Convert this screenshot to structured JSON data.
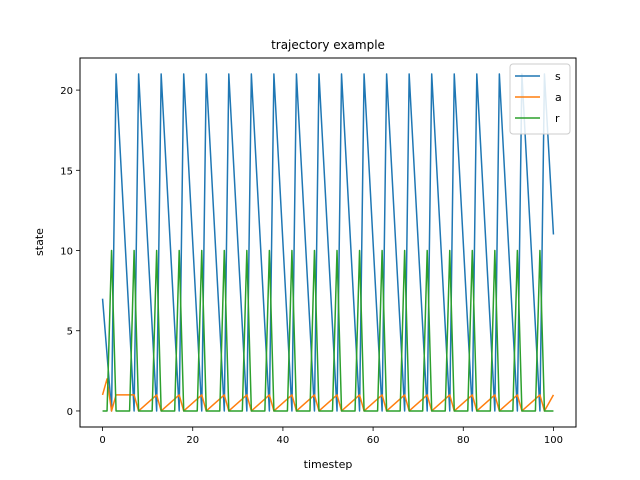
{
  "chart_data": {
    "type": "line",
    "title": "trajectory example",
    "xlabel": "timestep",
    "ylabel": "state",
    "xlim": [
      -5,
      105
    ],
    "ylim": [
      -1,
      22
    ],
    "xticks": [
      0,
      20,
      40,
      60,
      80,
      100
    ],
    "yticks": [
      0,
      5,
      10,
      15,
      20
    ],
    "legend": {
      "position": "top-right"
    },
    "series": [
      {
        "name": "s",
        "color": "#1f77b4",
        "x": [
          0,
          2,
          3,
          7,
          8,
          12,
          13,
          17,
          18,
          22,
          23,
          27,
          28,
          32,
          33,
          37,
          38,
          42,
          43,
          47,
          48,
          52,
          53,
          57,
          58,
          62,
          63,
          67,
          68,
          72,
          73,
          77,
          78,
          82,
          83,
          87,
          88,
          92,
          93,
          97,
          98,
          100
        ],
        "y": [
          7,
          0,
          21,
          0,
          21,
          0,
          21,
          0,
          21,
          0,
          21,
          0,
          21,
          0,
          21,
          0,
          21,
          0,
          21,
          0,
          21,
          0,
          21,
          0,
          21,
          0,
          21,
          0,
          21,
          0,
          21,
          0,
          21,
          0,
          21,
          0,
          21,
          0,
          21,
          0,
          21,
          11
        ]
      },
      {
        "name": "a",
        "color": "#ff7f0e",
        "x": [
          0,
          1,
          2,
          3,
          7,
          8,
          12,
          13,
          17,
          18,
          22,
          23,
          27,
          28,
          32,
          33,
          37,
          38,
          42,
          43,
          47,
          48,
          52,
          53,
          57,
          58,
          62,
          63,
          67,
          68,
          72,
          73,
          77,
          78,
          82,
          83,
          87,
          88,
          92,
          93,
          97,
          98,
          100
        ],
        "y": [
          1,
          2,
          0,
          1,
          1,
          0,
          1,
          0,
          1,
          0,
          1,
          0,
          1,
          0,
          1,
          0,
          1,
          0,
          1,
          0,
          1,
          0,
          1,
          0,
          1,
          0,
          1,
          0,
          1,
          0,
          1,
          0,
          1,
          0,
          1,
          0,
          1,
          0,
          1,
          0,
          1,
          0,
          1
        ]
      },
      {
        "name": "r",
        "color": "#2ca02c",
        "x": [
          0,
          1,
          2,
          3,
          6,
          7,
          8,
          11,
          12,
          13,
          16,
          17,
          18,
          21,
          22,
          23,
          26,
          27,
          28,
          31,
          32,
          33,
          36,
          37,
          38,
          41,
          42,
          43,
          46,
          47,
          48,
          51,
          52,
          53,
          56,
          57,
          58,
          61,
          62,
          63,
          66,
          67,
          68,
          71,
          72,
          73,
          76,
          77,
          78,
          81,
          82,
          83,
          86,
          87,
          88,
          91,
          92,
          93,
          96,
          97,
          98,
          100
        ],
        "y": [
          0,
          0,
          10,
          0,
          0,
          10,
          0,
          0,
          10,
          0,
          0,
          10,
          0,
          0,
          10,
          0,
          0,
          10,
          0,
          0,
          10,
          0,
          0,
          10,
          0,
          0,
          10,
          0,
          0,
          10,
          0,
          0,
          10,
          0,
          0,
          10,
          0,
          0,
          10,
          0,
          0,
          10,
          0,
          0,
          10,
          0,
          0,
          10,
          0,
          0,
          10,
          0,
          0,
          10,
          0,
          0,
          10,
          0,
          0,
          10,
          0,
          0
        ]
      }
    ]
  }
}
